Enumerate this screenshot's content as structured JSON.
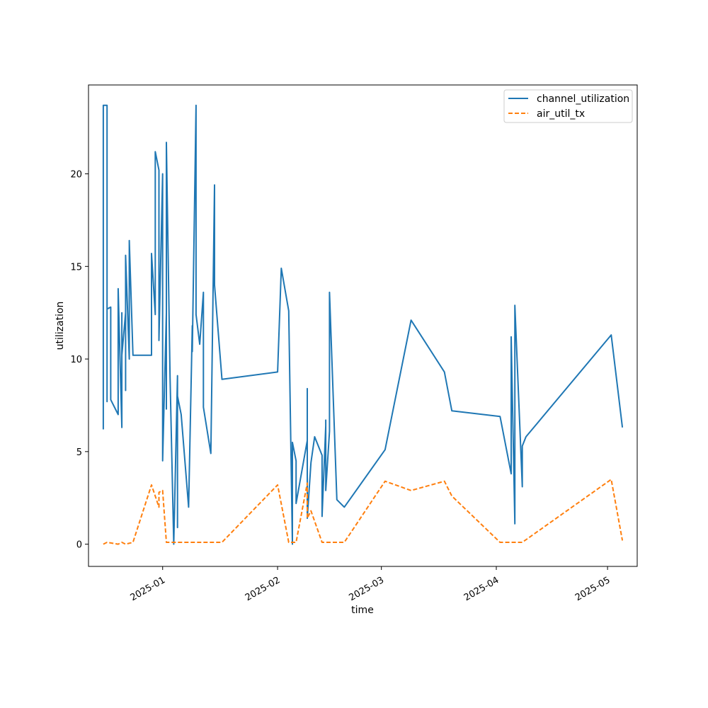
{
  "chart_data": {
    "type": "line",
    "xlabel": "time",
    "ylabel": "utilization",
    "x_type": "date",
    "xlim": [
      "2024-12-12",
      "2025-05-09"
    ],
    "ylim": [
      -1.2,
      24.8
    ],
    "x_ticks": [
      "2025-01-01",
      "2025-02-01",
      "2025-03-01",
      "2025-04-01",
      "2025-05-01"
    ],
    "x_tick_labels": [
      "2025-01",
      "2025-02",
      "2025-03",
      "2025-04",
      "2025-05"
    ],
    "y_ticks": [
      0,
      5,
      10,
      15,
      20
    ],
    "y_tick_labels": [
      "0",
      "5",
      "10",
      "15",
      "20"
    ],
    "grid": false,
    "legend": "top-right",
    "series": [
      {
        "name": "channel_utilization",
        "color": "#1f77b4",
        "style": "solid",
        "points": [
          [
            "2024-12-16",
            6.2
          ],
          [
            "2024-12-16",
            23.7
          ],
          [
            "2024-12-17",
            23.7
          ],
          [
            "2024-12-17",
            7.7
          ],
          [
            "2024-12-17",
            12.7
          ],
          [
            "2024-12-18",
            12.8
          ],
          [
            "2024-12-18",
            7.8
          ],
          [
            "2024-12-20",
            7.0
          ],
          [
            "2024-12-20",
            13.8
          ],
          [
            "2024-12-21",
            6.3
          ],
          [
            "2024-12-21",
            12.5
          ],
          [
            "2024-12-21",
            10.2
          ],
          [
            "2024-12-22",
            12.5
          ],
          [
            "2024-12-22",
            8.3
          ],
          [
            "2024-12-22",
            15.6
          ],
          [
            "2024-12-23",
            10.0
          ],
          [
            "2024-12-23",
            16.4
          ],
          [
            "2024-12-24",
            10.2
          ],
          [
            "2024-12-29",
            10.2
          ],
          [
            "2024-12-29",
            15.7
          ],
          [
            "2024-12-30",
            12.4
          ],
          [
            "2024-12-30",
            21.2
          ],
          [
            "2024-12-31",
            20.2
          ],
          [
            "2024-12-31",
            11.0
          ],
          [
            "2025-01-01",
            20.0
          ],
          [
            "2025-01-01",
            4.5
          ],
          [
            "2025-01-02",
            12.5
          ],
          [
            "2025-01-02",
            7.3
          ],
          [
            "2025-01-02",
            21.7
          ],
          [
            "2025-01-03",
            9.0
          ],
          [
            "2025-01-04",
            0.0
          ],
          [
            "2025-01-05",
            9.1
          ],
          [
            "2025-01-05",
            0.9
          ],
          [
            "2025-01-05",
            8.0
          ],
          [
            "2025-01-06",
            7.0
          ],
          [
            "2025-01-08",
            2.0
          ],
          [
            "2025-01-09",
            11.8
          ],
          [
            "2025-01-09",
            10.4
          ],
          [
            "2025-01-10",
            23.7
          ],
          [
            "2025-01-10",
            12.4
          ],
          [
            "2025-01-11",
            10.8
          ],
          [
            "2025-01-12",
            13.6
          ],
          [
            "2025-01-12",
            7.4
          ],
          [
            "2025-01-14",
            4.9
          ],
          [
            "2025-01-15",
            19.4
          ],
          [
            "2025-01-15",
            14.0
          ],
          [
            "2025-01-17",
            8.9
          ],
          [
            "2025-02-01",
            9.3
          ],
          [
            "2025-02-02",
            14.9
          ],
          [
            "2025-02-04",
            12.6
          ],
          [
            "2025-02-05",
            0.0
          ],
          [
            "2025-02-05",
            5.5
          ],
          [
            "2025-02-06",
            4.5
          ],
          [
            "2025-02-06",
            2.2
          ],
          [
            "2025-02-09",
            5.6
          ],
          [
            "2025-02-09",
            5.6
          ],
          [
            "2025-02-09",
            8.4
          ],
          [
            "2025-02-09",
            1.4
          ],
          [
            "2025-02-10",
            4.4
          ],
          [
            "2025-02-11",
            5.8
          ],
          [
            "2025-02-13",
            4.8
          ],
          [
            "2025-02-13",
            1.5
          ],
          [
            "2025-02-14",
            6.4
          ],
          [
            "2025-02-14",
            6.7
          ],
          [
            "2025-02-14",
            2.9
          ],
          [
            "2025-02-15",
            6.1
          ],
          [
            "2025-02-15",
            13.6
          ],
          [
            "2025-02-17",
            2.4
          ],
          [
            "2025-02-19",
            2.0
          ],
          [
            "2025-03-02",
            5.1
          ],
          [
            "2025-03-09",
            12.1
          ],
          [
            "2025-03-18",
            9.3
          ],
          [
            "2025-03-20",
            7.2
          ],
          [
            "2025-04-02",
            6.9
          ],
          [
            "2025-04-05",
            3.8
          ],
          [
            "2025-04-05",
            11.2
          ],
          [
            "2025-04-06",
            1.1
          ],
          [
            "2025-04-06",
            12.9
          ],
          [
            "2025-04-08",
            3.1
          ],
          [
            "2025-04-08",
            5.3
          ],
          [
            "2025-04-09",
            5.8
          ],
          [
            "2025-05-02",
            11.3
          ],
          [
            "2025-05-05",
            6.3
          ]
        ]
      },
      {
        "name": "air_util_tx",
        "color": "#ff7f0e",
        "style": "dashed",
        "points": [
          [
            "2024-12-16",
            0.0
          ],
          [
            "2024-12-17",
            0.1
          ],
          [
            "2024-12-20",
            0.0
          ],
          [
            "2024-12-21",
            0.1
          ],
          [
            "2024-12-22",
            0.0
          ],
          [
            "2024-12-24",
            0.1
          ],
          [
            "2024-12-29",
            3.2
          ],
          [
            "2024-12-31",
            2.0
          ],
          [
            "2024-12-31",
            2.8
          ],
          [
            "2025-01-01",
            2.9
          ],
          [
            "2025-01-02",
            0.1
          ],
          [
            "2025-01-04",
            0.1
          ],
          [
            "2025-01-05",
            0.1
          ],
          [
            "2025-01-10",
            0.1
          ],
          [
            "2025-01-12",
            0.1
          ],
          [
            "2025-01-17",
            0.1
          ],
          [
            "2025-02-01",
            3.2
          ],
          [
            "2025-02-04",
            0.1
          ],
          [
            "2025-02-06",
            0.1
          ],
          [
            "2025-02-09",
            3.3
          ],
          [
            "2025-02-09",
            1.4
          ],
          [
            "2025-02-10",
            1.8
          ],
          [
            "2025-02-13",
            0.1
          ],
          [
            "2025-02-14",
            0.1
          ],
          [
            "2025-02-19",
            0.1
          ],
          [
            "2025-03-02",
            3.4
          ],
          [
            "2025-03-09",
            2.9
          ],
          [
            "2025-03-18",
            3.4
          ],
          [
            "2025-03-20",
            2.6
          ],
          [
            "2025-04-02",
            0.1
          ],
          [
            "2025-04-08",
            0.1
          ],
          [
            "2025-05-02",
            3.5
          ],
          [
            "2025-05-05",
            0.2
          ]
        ]
      }
    ]
  }
}
